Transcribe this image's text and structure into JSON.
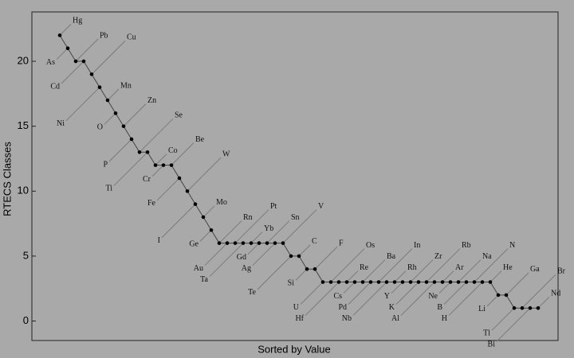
{
  "chart_data": {
    "type": "line",
    "x_label": "Sorted by Value",
    "y_label": "RTECS Classes",
    "color": "#000000",
    "categories": [
      "Hg",
      "As",
      "Pb",
      "Cd",
      "Cu",
      "Ni",
      "Mn",
      "O",
      "Zn",
      "P",
      "Se",
      "Ti",
      "Co",
      "Cr",
      "Be",
      "Fe",
      "W",
      "I",
      "Mo",
      "Ge",
      "Rn",
      "Au",
      "Pt",
      "Ta",
      "Yb",
      "Gd",
      "Sn",
      "Ag",
      "V",
      "Te",
      "C",
      "Si",
      "F",
      "U",
      "Os",
      "Hf",
      "Re",
      "Cs",
      "Ba",
      "Pd",
      "In",
      "Nb",
      "Rh",
      "Y",
      "Zr",
      "K",
      "Rb",
      "Al",
      "Ar",
      "Ne",
      "Na",
      "B",
      "N",
      "H",
      "He",
      "Li",
      "Ga",
      "Tl",
      "Br",
      "Bi",
      "Nd"
    ],
    "values": [
      22,
      21,
      20,
      20,
      19,
      18,
      17,
      16,
      15,
      14,
      13,
      13,
      12,
      12,
      12,
      11,
      10,
      9,
      8,
      7,
      6,
      6,
      6,
      6,
      6,
      6,
      6,
      6,
      6,
      5,
      5,
      4,
      4,
      3,
      3,
      3,
      3,
      3,
      3,
      3,
      3,
      3,
      3,
      3,
      3,
      3,
      3,
      3,
      3,
      3,
      3,
      3,
      3,
      3,
      3,
      2,
      2,
      1,
      1,
      1,
      1
    ],
    "ylim": [
      -1.5,
      23.8
    ],
    "yticks": [
      0,
      5,
      10,
      15,
      20
    ]
  }
}
